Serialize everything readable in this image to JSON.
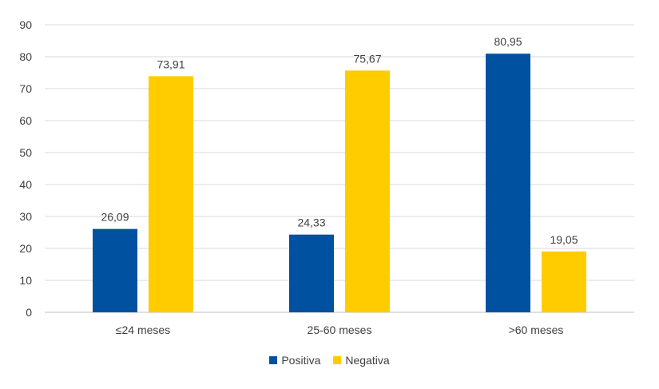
{
  "chart_data": {
    "type": "bar",
    "categories": [
      "≤24 meses",
      "25-60 meses",
      ">60 meses"
    ],
    "series": [
      {
        "name": "Positiva",
        "values": [
          26.09,
          24.33,
          80.95
        ],
        "labels": [
          "26,09",
          "24,33",
          "80,95"
        ],
        "color": "#0052A0"
      },
      {
        "name": "Negativa",
        "values": [
          73.91,
          75.67,
          19.05
        ],
        "labels": [
          "73,91",
          "75,67",
          "19,05"
        ],
        "color": "#FFCC00"
      }
    ],
    "ylim": [
      0,
      90
    ],
    "yticks": [
      0,
      10,
      20,
      30,
      40,
      50,
      60,
      70,
      80,
      90
    ],
    "grid": true,
    "legend_position": "bottom",
    "title": "",
    "xlabel": "",
    "ylabel": ""
  }
}
